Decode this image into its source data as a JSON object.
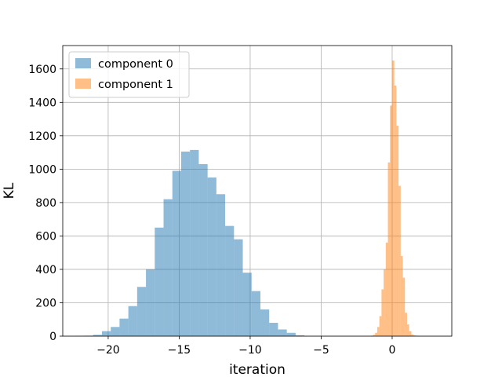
{
  "chart_data": {
    "type": "histogram",
    "xlabel": "iteration",
    "ylabel": "KL",
    "xlim": [
      -23.2,
      4.2
    ],
    "ylim": [
      0,
      1740
    ],
    "xticks": [
      -20,
      -15,
      -10,
      -5,
      0
    ],
    "xtick_labels": [
      "−20",
      "−15",
      "−10",
      "−5",
      "0"
    ],
    "yticks": [
      0,
      200,
      400,
      600,
      800,
      1000,
      1200,
      1400,
      1600
    ],
    "ytick_labels": [
      "0",
      "200",
      "400",
      "600",
      "800",
      "1000",
      "1200",
      "1400",
      "1600"
    ],
    "grid": true,
    "legend_position": "upper-left",
    "series": [
      {
        "name": "component 0",
        "color": "#1f77b4",
        "alpha": 0.5,
        "bin_edges": [
          -22.3,
          -21.68,
          -21.06,
          -20.44,
          -19.82,
          -19.2,
          -18.58,
          -17.96,
          -17.34,
          -16.72,
          -16.1,
          -15.48,
          -14.86,
          -14.24,
          -13.62,
          -13.0,
          -12.38,
          -11.76,
          -11.14,
          -10.52,
          -9.9,
          -9.28,
          -8.66,
          -8.04,
          -7.42,
          -6.8,
          -6.18
        ],
        "counts": [
          2,
          3,
          8,
          30,
          55,
          105,
          180,
          295,
          400,
          650,
          820,
          990,
          1105,
          1115,
          1030,
          950,
          850,
          660,
          580,
          380,
          270,
          160,
          80,
          40,
          20,
          5
        ]
      },
      {
        "name": "component 1",
        "color": "#ff7f0e",
        "alpha": 0.5,
        "bin_edges": [
          -1.5,
          -1.35,
          -1.2,
          -1.05,
          -0.9,
          -0.75,
          -0.6,
          -0.45,
          -0.3,
          -0.15,
          0.0,
          0.15,
          0.3,
          0.45,
          0.6,
          0.75,
          0.9,
          1.05,
          1.2,
          1.35,
          1.5,
          1.65,
          1.8,
          1.95,
          2.1
        ],
        "counts": [
          3,
          8,
          20,
          55,
          120,
          280,
          400,
          560,
          1040,
          1380,
          1650,
          1500,
          1260,
          900,
          480,
          350,
          140,
          70,
          30,
          10,
          5,
          3,
          2,
          1
        ]
      }
    ]
  }
}
